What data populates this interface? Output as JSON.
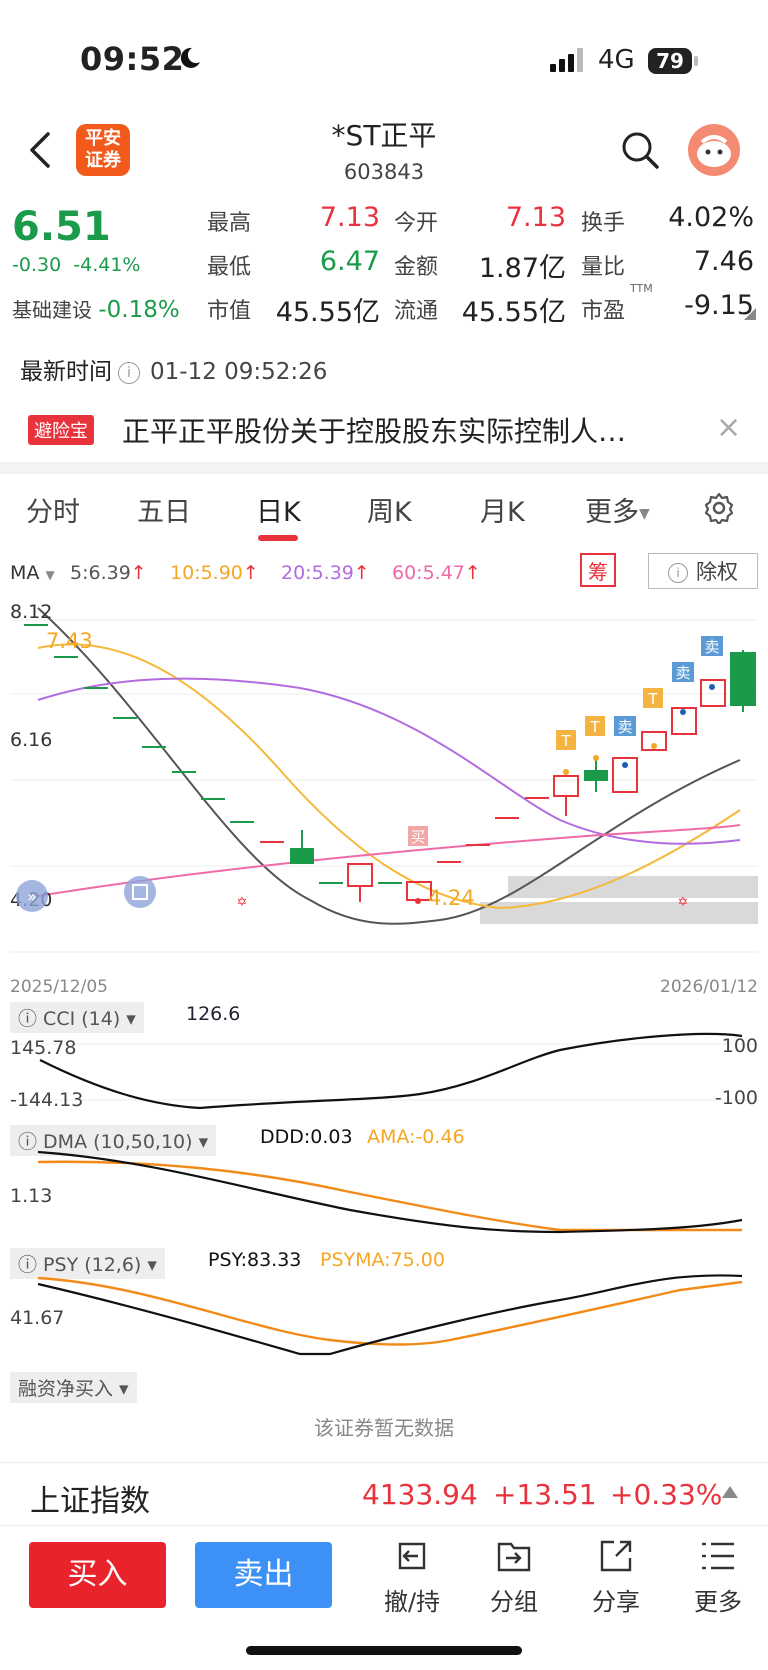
{
  "status": {
    "time": "09:52",
    "network": "4G",
    "battery": "79"
  },
  "header": {
    "title": "*ST正平",
    "code": "603843",
    "logo_text_1": "平安",
    "logo_text_2": "证券"
  },
  "quote": {
    "price": "6.51",
    "change": "-0.30",
    "change_pct": "-4.41%",
    "sector_name": "基础建设",
    "sector_pct": "-0.18%",
    "high_label": "最高",
    "high": "7.13",
    "open_label": "今开",
    "open": "7.13",
    "turnover_label": "换手",
    "turnover": "4.02%",
    "low_label": "最低",
    "low": "6.47",
    "amount_label": "金额",
    "amount": "1.87亿",
    "vol_ratio_label": "量比",
    "vol_ratio": "7.46",
    "mcap_label": "市值",
    "mcap": "45.55亿",
    "float_label": "流通",
    "float_cap": "45.55亿",
    "pe_label": "市盈",
    "pe_sup": "TTM",
    "pe": "-9.15"
  },
  "latest": {
    "label": "最新时间",
    "info": "i",
    "timestamp": "01-12 09:52:26"
  },
  "news": {
    "badge": "避险宝",
    "text": "正平正平股份关于控股股东实际控制人…",
    "close": "×"
  },
  "tabs": [
    {
      "label": "分时"
    },
    {
      "label": "五日"
    },
    {
      "label": "日K"
    },
    {
      "label": "周K"
    },
    {
      "label": "月K"
    },
    {
      "label": "更多"
    }
  ],
  "ma": {
    "label": "MA",
    "ma5": "5:6.39",
    "ma10": "10:5.90",
    "ma20": "20:5.39",
    "ma60": "60:5.47",
    "arrow": "↑",
    "chou": "筹",
    "fuquan": "除权",
    "colors": {
      "ma5": "#555555",
      "ma10": "#f5a623",
      "ma20": "#b36be0",
      "ma60": "#f06aa8"
    }
  },
  "kchart": {
    "y_top": "8.12",
    "y_mid": "6.16",
    "y_bot": "4.20",
    "max_label": "7.43",
    "min_label": "4.24",
    "date_start": "2025/12/05",
    "date_end": "2026/01/12",
    "buy_tag": "买",
    "sell_tag": "卖",
    "t_tag": "T"
  },
  "cci": {
    "label": "CCI (14)",
    "value": "126.6",
    "y_top": "145.78",
    "y_bot": "-144.13",
    "ref_hi": "100",
    "ref_lo": "-100"
  },
  "dma": {
    "label": "DMA (10,50,10)",
    "ddd": "DDD:0.03",
    "ama": "AMA:-0.46",
    "y_mid": "1.13"
  },
  "psy": {
    "label": "PSY (12,6)",
    "psy": "PSY:83.33",
    "psyma": "PSYMA:75.00",
    "y_mid": "41.67"
  },
  "margin": {
    "label": "融资净买入",
    "empty": "该证券暂无数据"
  },
  "index": {
    "name": "上证指数",
    "value": "4133.94",
    "change": "+13.51",
    "pct": "+0.33%"
  },
  "actions": {
    "buy": "买入",
    "sell": "卖出",
    "hold": "撤/持",
    "group": "分组",
    "share": "分享",
    "more": "更多"
  }
}
